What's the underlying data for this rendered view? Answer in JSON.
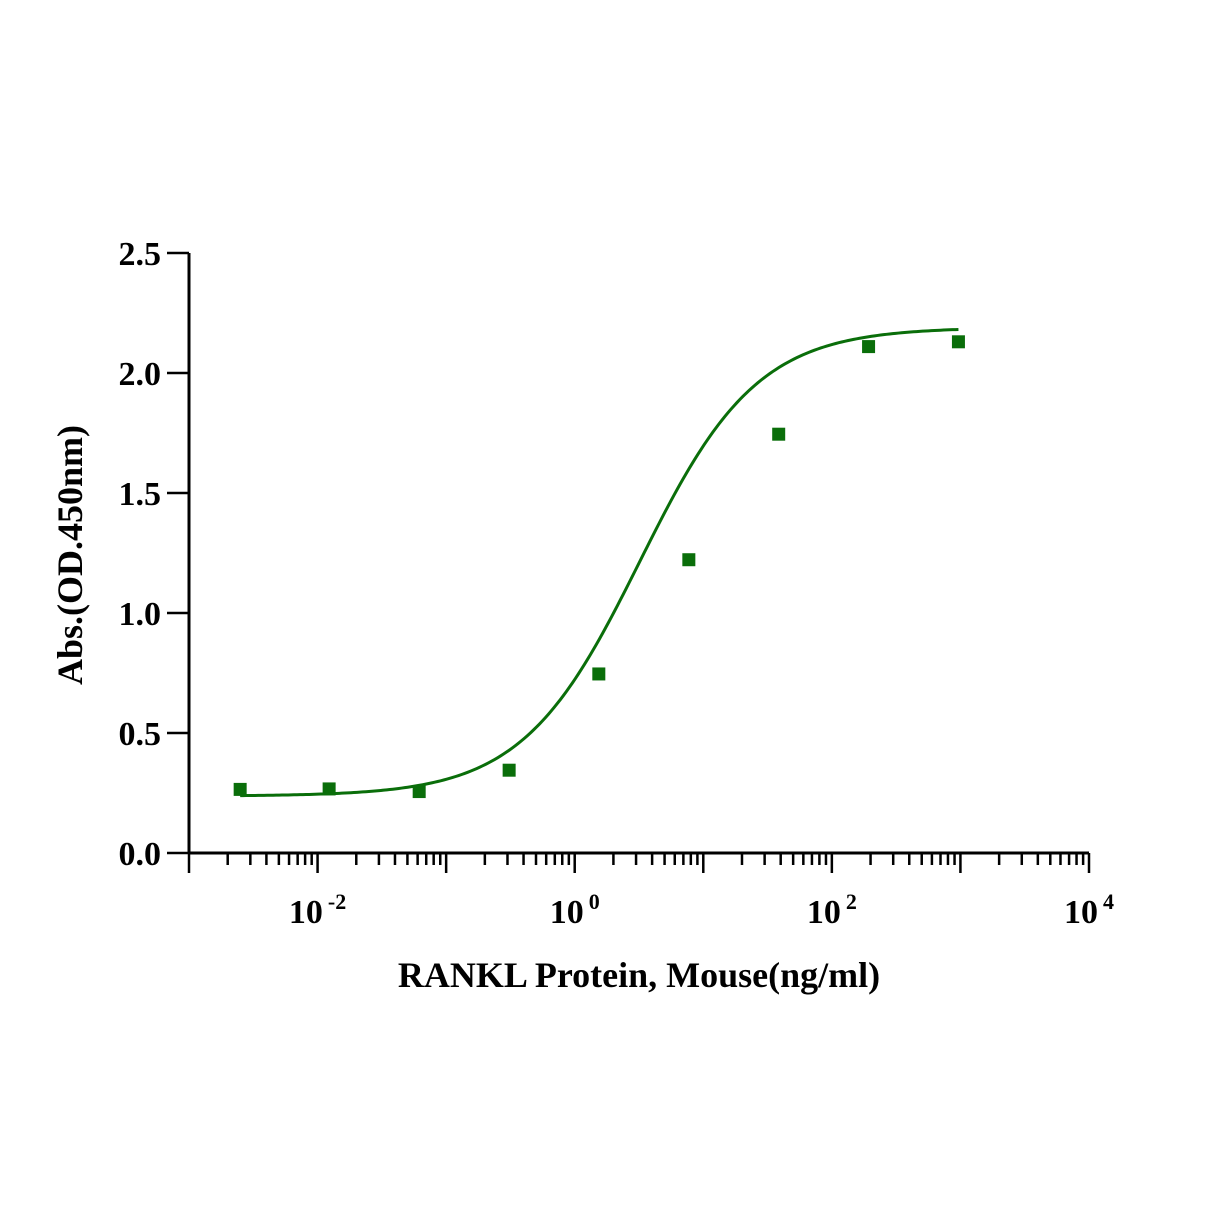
{
  "chart_data": {
    "type": "scatter",
    "title": "",
    "xlabel": "RANKL Protein, Mouse(ng/ml)",
    "ylabel": "Abs.(OD.450nm)",
    "x_scale": "log10",
    "xlim": [
      0.001,
      10000
    ],
    "ylim": [
      0,
      2.5
    ],
    "y_ticks": [
      "0.0",
      "0.5",
      "1.0",
      "1.5",
      "2.0",
      "2.5"
    ],
    "x_ticks": [
      {
        "base": "10",
        "exp": "-2",
        "value": 0.01
      },
      {
        "base": "10",
        "exp": "0",
        "value": 1
      },
      {
        "base": "10",
        "exp": "2",
        "value": 100
      },
      {
        "base": "10",
        "exp": "4",
        "value": 10000
      }
    ],
    "grid": false,
    "legend": "none",
    "series": [
      {
        "x": [
          0.0025,
          0.0123,
          0.0617,
          0.309,
          1.54,
          7.72,
          38.6,
          193,
          965
        ],
        "y": [
          0.265,
          0.267,
          0.256,
          0.345,
          0.746,
          1.222,
          1.745,
          2.11,
          2.13
        ],
        "color": "#0a6e0a",
        "marker": "square",
        "fit": "4PL"
      }
    ]
  }
}
